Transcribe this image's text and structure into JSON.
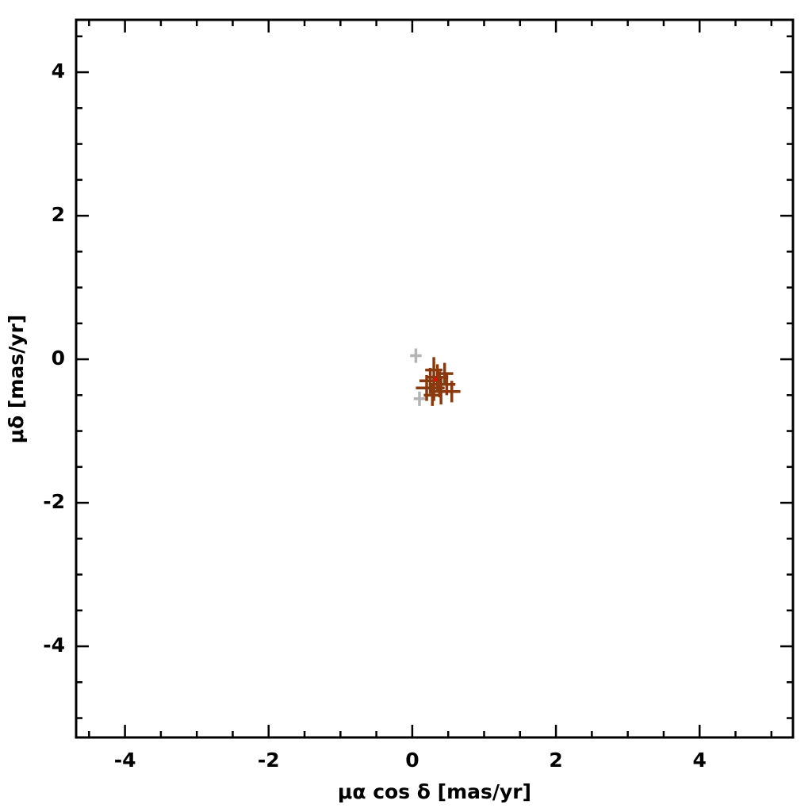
{
  "chart_data": {
    "type": "scatter",
    "xlabel": "μα cos δ [mas/yr]",
    "ylabel": "μδ [mas/yr]",
    "xlim": [
      -4.68,
      5.3
    ],
    "ylim": [
      -5.27,
      4.73
    ],
    "xticks": [
      -4,
      -2,
      0,
      2,
      4
    ],
    "yticks": [
      -4,
      -2,
      0,
      2,
      4
    ],
    "xminorticks": [
      -4.5,
      -3.5,
      -3,
      -2.5,
      -1.5,
      -1,
      -0.5,
      0.5,
      1,
      1.5,
      2.5,
      3,
      3.5,
      4.5,
      5
    ],
    "yminorticks": [
      -5,
      -4.5,
      -3.5,
      -3,
      -2.5,
      -1.5,
      -1,
      -0.5,
      0.5,
      1,
      1.5,
      2.5,
      3,
      3.5,
      4.5
    ],
    "series": [
      {
        "color": "#b4b4b4",
        "x": [
          0.05,
          0.1
        ],
        "y": [
          0.05,
          -0.55
        ],
        "xerr": [
          0.08,
          0.08
        ],
        "yerr": [
          0.1,
          0.1
        ]
      },
      {
        "color": "#8b3a0f",
        "x": [
          0.25,
          0.3,
          0.35,
          0.45,
          0.4,
          0.55,
          0.2,
          0.3,
          0.38,
          0.48,
          0.28
        ],
        "y": [
          -0.3,
          -0.4,
          -0.25,
          -0.2,
          -0.45,
          -0.45,
          -0.4,
          -0.15,
          -0.35,
          -0.35,
          -0.5
        ],
        "xerr": [
          0.15,
          0.15,
          0.15,
          0.12,
          0.15,
          0.12,
          0.15,
          0.12,
          0.15,
          0.12,
          0.12
        ],
        "yerr": [
          0.18,
          0.18,
          0.18,
          0.15,
          0.18,
          0.15,
          0.18,
          0.18,
          0.18,
          0.15,
          0.15
        ]
      },
      {
        "color": "#ff0000",
        "x": [
          0.32
        ],
        "y": [
          -0.28
        ],
        "xerr": [
          0.02
        ],
        "yerr": [
          0.02
        ]
      }
    ]
  }
}
